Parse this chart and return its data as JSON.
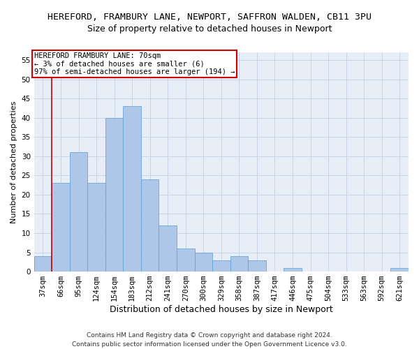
{
  "title1": "HEREFORD, FRAMBURY LANE, NEWPORT, SAFFRON WALDEN, CB11 3PU",
  "title2": "Size of property relative to detached houses in Newport",
  "xlabel": "Distribution of detached houses by size in Newport",
  "ylabel": "Number of detached properties",
  "categories": [
    "37sqm",
    "66sqm",
    "95sqm",
    "124sqm",
    "154sqm",
    "183sqm",
    "212sqm",
    "241sqm",
    "270sqm",
    "300sqm",
    "329sqm",
    "358sqm",
    "387sqm",
    "417sqm",
    "446sqm",
    "475sqm",
    "504sqm",
    "533sqm",
    "563sqm",
    "592sqm",
    "621sqm"
  ],
  "values": [
    4,
    23,
    31,
    23,
    40,
    43,
    24,
    12,
    6,
    5,
    3,
    4,
    3,
    0,
    1,
    0,
    0,
    0,
    0,
    0,
    1
  ],
  "bar_color": "#aec6e8",
  "bar_edge_color": "#5b9bd5",
  "highlight_index": 1,
  "highlight_color": "#cc0000",
  "ylim": [
    0,
    57
  ],
  "yticks": [
    0,
    5,
    10,
    15,
    20,
    25,
    30,
    35,
    40,
    45,
    50,
    55
  ],
  "annotation_title": "HEREFORD FRAMBURY LANE: 70sqm",
  "annotation_line1": "← 3% of detached houses are smaller (6)",
  "annotation_line2": "97% of semi-detached houses are larger (194) →",
  "annotation_box_color": "#cc0000",
  "footer1": "Contains HM Land Registry data © Crown copyright and database right 2024.",
  "footer2": "Contains public sector information licensed under the Open Government Licence v3.0.",
  "bg_color": "#ffffff",
  "grid_color": "#c8d4e8",
  "axes_bg_color": "#e8eef8",
  "title1_fontsize": 9.5,
  "title2_fontsize": 9,
  "xlabel_fontsize": 9,
  "ylabel_fontsize": 8,
  "tick_fontsize": 7.5,
  "annotation_fontsize": 7.5,
  "footer_fontsize": 6.5
}
